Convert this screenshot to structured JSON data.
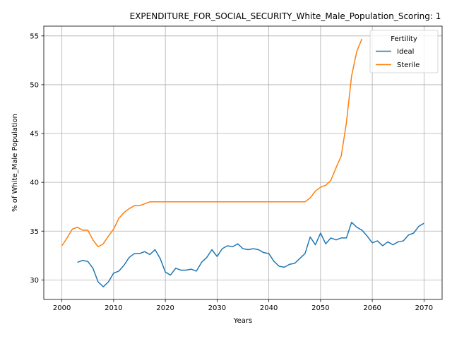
{
  "chart_data": {
    "type": "line",
    "title": "EXPENDITURE_FOR_SOCIAL_SECURITY_White_Male_Population_Scoring: 1",
    "xlabel": "Years",
    "ylabel": "% of White_Male Population",
    "xlim": [
      1996.5,
      2073.5
    ],
    "ylim": [
      28.0,
      56.0
    ],
    "xticks": [
      2000,
      2010,
      2020,
      2030,
      2040,
      2050,
      2060,
      2070
    ],
    "yticks": [
      30,
      35,
      40,
      45,
      50,
      55
    ],
    "grid": true,
    "legend": {
      "title": "Fertility",
      "placement": "top-right"
    },
    "series": [
      {
        "name": "Ideal",
        "color": "#1f77b4",
        "x": [
          2003,
          2004,
          2005,
          2006,
          2007,
          2008,
          2009,
          2010,
          2011,
          2012,
          2013,
          2014,
          2015,
          2016,
          2017,
          2018,
          2019,
          2020,
          2021,
          2022,
          2023,
          2024,
          2025,
          2026,
          2027,
          2028,
          2029,
          2030,
          2031,
          2032,
          2033,
          2034,
          2035,
          2036,
          2037,
          2038,
          2039,
          2040,
          2041,
          2042,
          2043,
          2044,
          2045,
          2046,
          2047,
          2048,
          2049,
          2050,
          2051,
          2052,
          2053,
          2054,
          2055,
          2056,
          2057,
          2058,
          2059,
          2060,
          2061,
          2062,
          2063,
          2064,
          2065,
          2066,
          2067,
          2068,
          2069,
          2070
        ],
        "y": [
          31.8,
          32.0,
          31.9,
          31.2,
          29.8,
          29.3,
          29.8,
          30.7,
          30.9,
          31.5,
          32.3,
          32.7,
          32.7,
          32.9,
          32.6,
          33.1,
          32.2,
          30.8,
          30.5,
          31.2,
          31.0,
          31.0,
          31.1,
          30.9,
          31.8,
          32.3,
          33.1,
          32.4,
          33.2,
          33.5,
          33.4,
          33.7,
          33.2,
          33.1,
          33.2,
          33.1,
          32.8,
          32.7,
          31.9,
          31.4,
          31.3,
          31.6,
          31.7,
          32.2,
          32.7,
          34.4,
          33.6,
          34.8,
          33.7,
          34.3,
          34.1,
          34.3,
          34.3,
          35.9,
          35.4,
          35.1,
          34.5,
          33.8,
          34.0,
          33.5,
          33.9,
          33.6,
          33.9,
          34.0,
          34.6,
          34.8,
          35.5,
          35.8
        ]
      },
      {
        "name": "Sterile",
        "color": "#ff7f0e",
        "x": [
          2000,
          2001,
          2002,
          2003,
          2004,
          2005,
          2006,
          2007,
          2008,
          2009,
          2010,
          2011,
          2012,
          2013,
          2014,
          2015,
          2016,
          2017,
          2018,
          2019,
          2020,
          2021,
          2022,
          2023,
          2024,
          2025,
          2026,
          2027,
          2028,
          2029,
          2030,
          2031,
          2032,
          2033,
          2034,
          2035,
          2036,
          2037,
          2038,
          2039,
          2040,
          2041,
          2042,
          2043,
          2044,
          2045,
          2046,
          2047,
          2048,
          2049,
          2050,
          2051,
          2052,
          2053,
          2054,
          2055,
          2056,
          2057,
          2058
        ],
        "y": [
          33.5,
          34.3,
          35.2,
          35.4,
          35.1,
          35.1,
          34.1,
          33.4,
          33.7,
          34.5,
          35.2,
          36.3,
          36.9,
          37.3,
          37.6,
          37.6,
          37.8,
          38.0,
          38.0,
          38.0,
          38.0,
          38.0,
          38.0,
          38.0,
          38.0,
          38.0,
          38.0,
          38.0,
          38.0,
          38.0,
          38.0,
          38.0,
          38.0,
          38.0,
          38.0,
          38.0,
          38.0,
          38.0,
          38.0,
          38.0,
          38.0,
          38.0,
          38.0,
          38.0,
          38.0,
          38.0,
          38.0,
          38.0,
          38.4,
          39.1,
          39.5,
          39.7,
          40.2,
          41.5,
          42.7,
          46.1,
          50.9,
          53.4,
          54.7
        ]
      }
    ]
  }
}
